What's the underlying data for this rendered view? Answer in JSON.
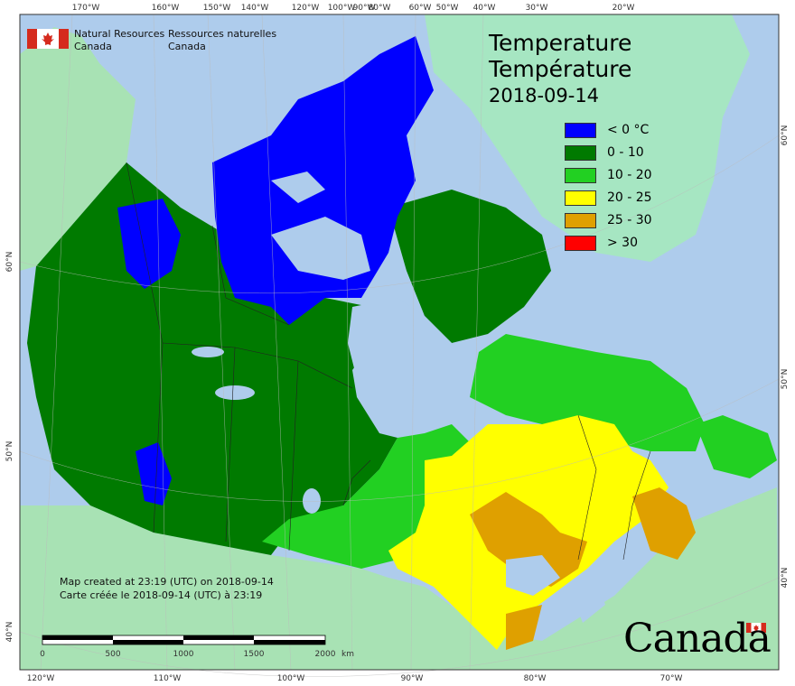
{
  "header": {
    "agency_en_line1": "Natural Resources",
    "agency_en_line2": "Canada",
    "agency_fr_line1": "Ressources naturelles",
    "agency_fr_line2": "Canada"
  },
  "title": {
    "en": "Temperature",
    "fr": "Température",
    "date": "2018-09-14"
  },
  "legend": [
    {
      "label": "< 0 °C",
      "color": "#0000ff"
    },
    {
      "label": "0 - 10",
      "color": "#007a00"
    },
    {
      "label": "10 - 20",
      "color": "#22d022"
    },
    {
      "label": "20 - 25",
      "color": "#ffff00"
    },
    {
      "label": "25 - 30",
      "color": "#dfa000"
    },
    {
      "label": "> 30",
      "color": "#ff0000"
    }
  ],
  "credit": {
    "en": "Map created at 23:19 (UTC) on 2018-09-14",
    "fr": "Carte créée le 2018-09-14 (UTC) à 23:19"
  },
  "scale_bar": {
    "ticks": [
      "0",
      "500",
      "1000",
      "1500",
      "2000"
    ],
    "unit": "km"
  },
  "graticule": {
    "top": [
      "170°W",
      "160°W",
      "150°W",
      "140°W",
      "120°W",
      "100°W",
      "90°W",
      "80°W",
      "60°W",
      "50°W",
      "40°W",
      "30°W",
      "20°W"
    ],
    "bottom": [
      "120°W",
      "110°W",
      "100°W",
      "90°W",
      "80°W",
      "70°W"
    ],
    "left": [
      "60°N",
      "50°N",
      "40°N"
    ],
    "right": [
      "60°N",
      "50°N",
      "40°N"
    ]
  },
  "wordmark": "Canada",
  "colors": {
    "ocean": "#aeccec",
    "us_land": "#a8e2b4",
    "greenland": "#a6e6c2",
    "lake": "#aeccec"
  }
}
